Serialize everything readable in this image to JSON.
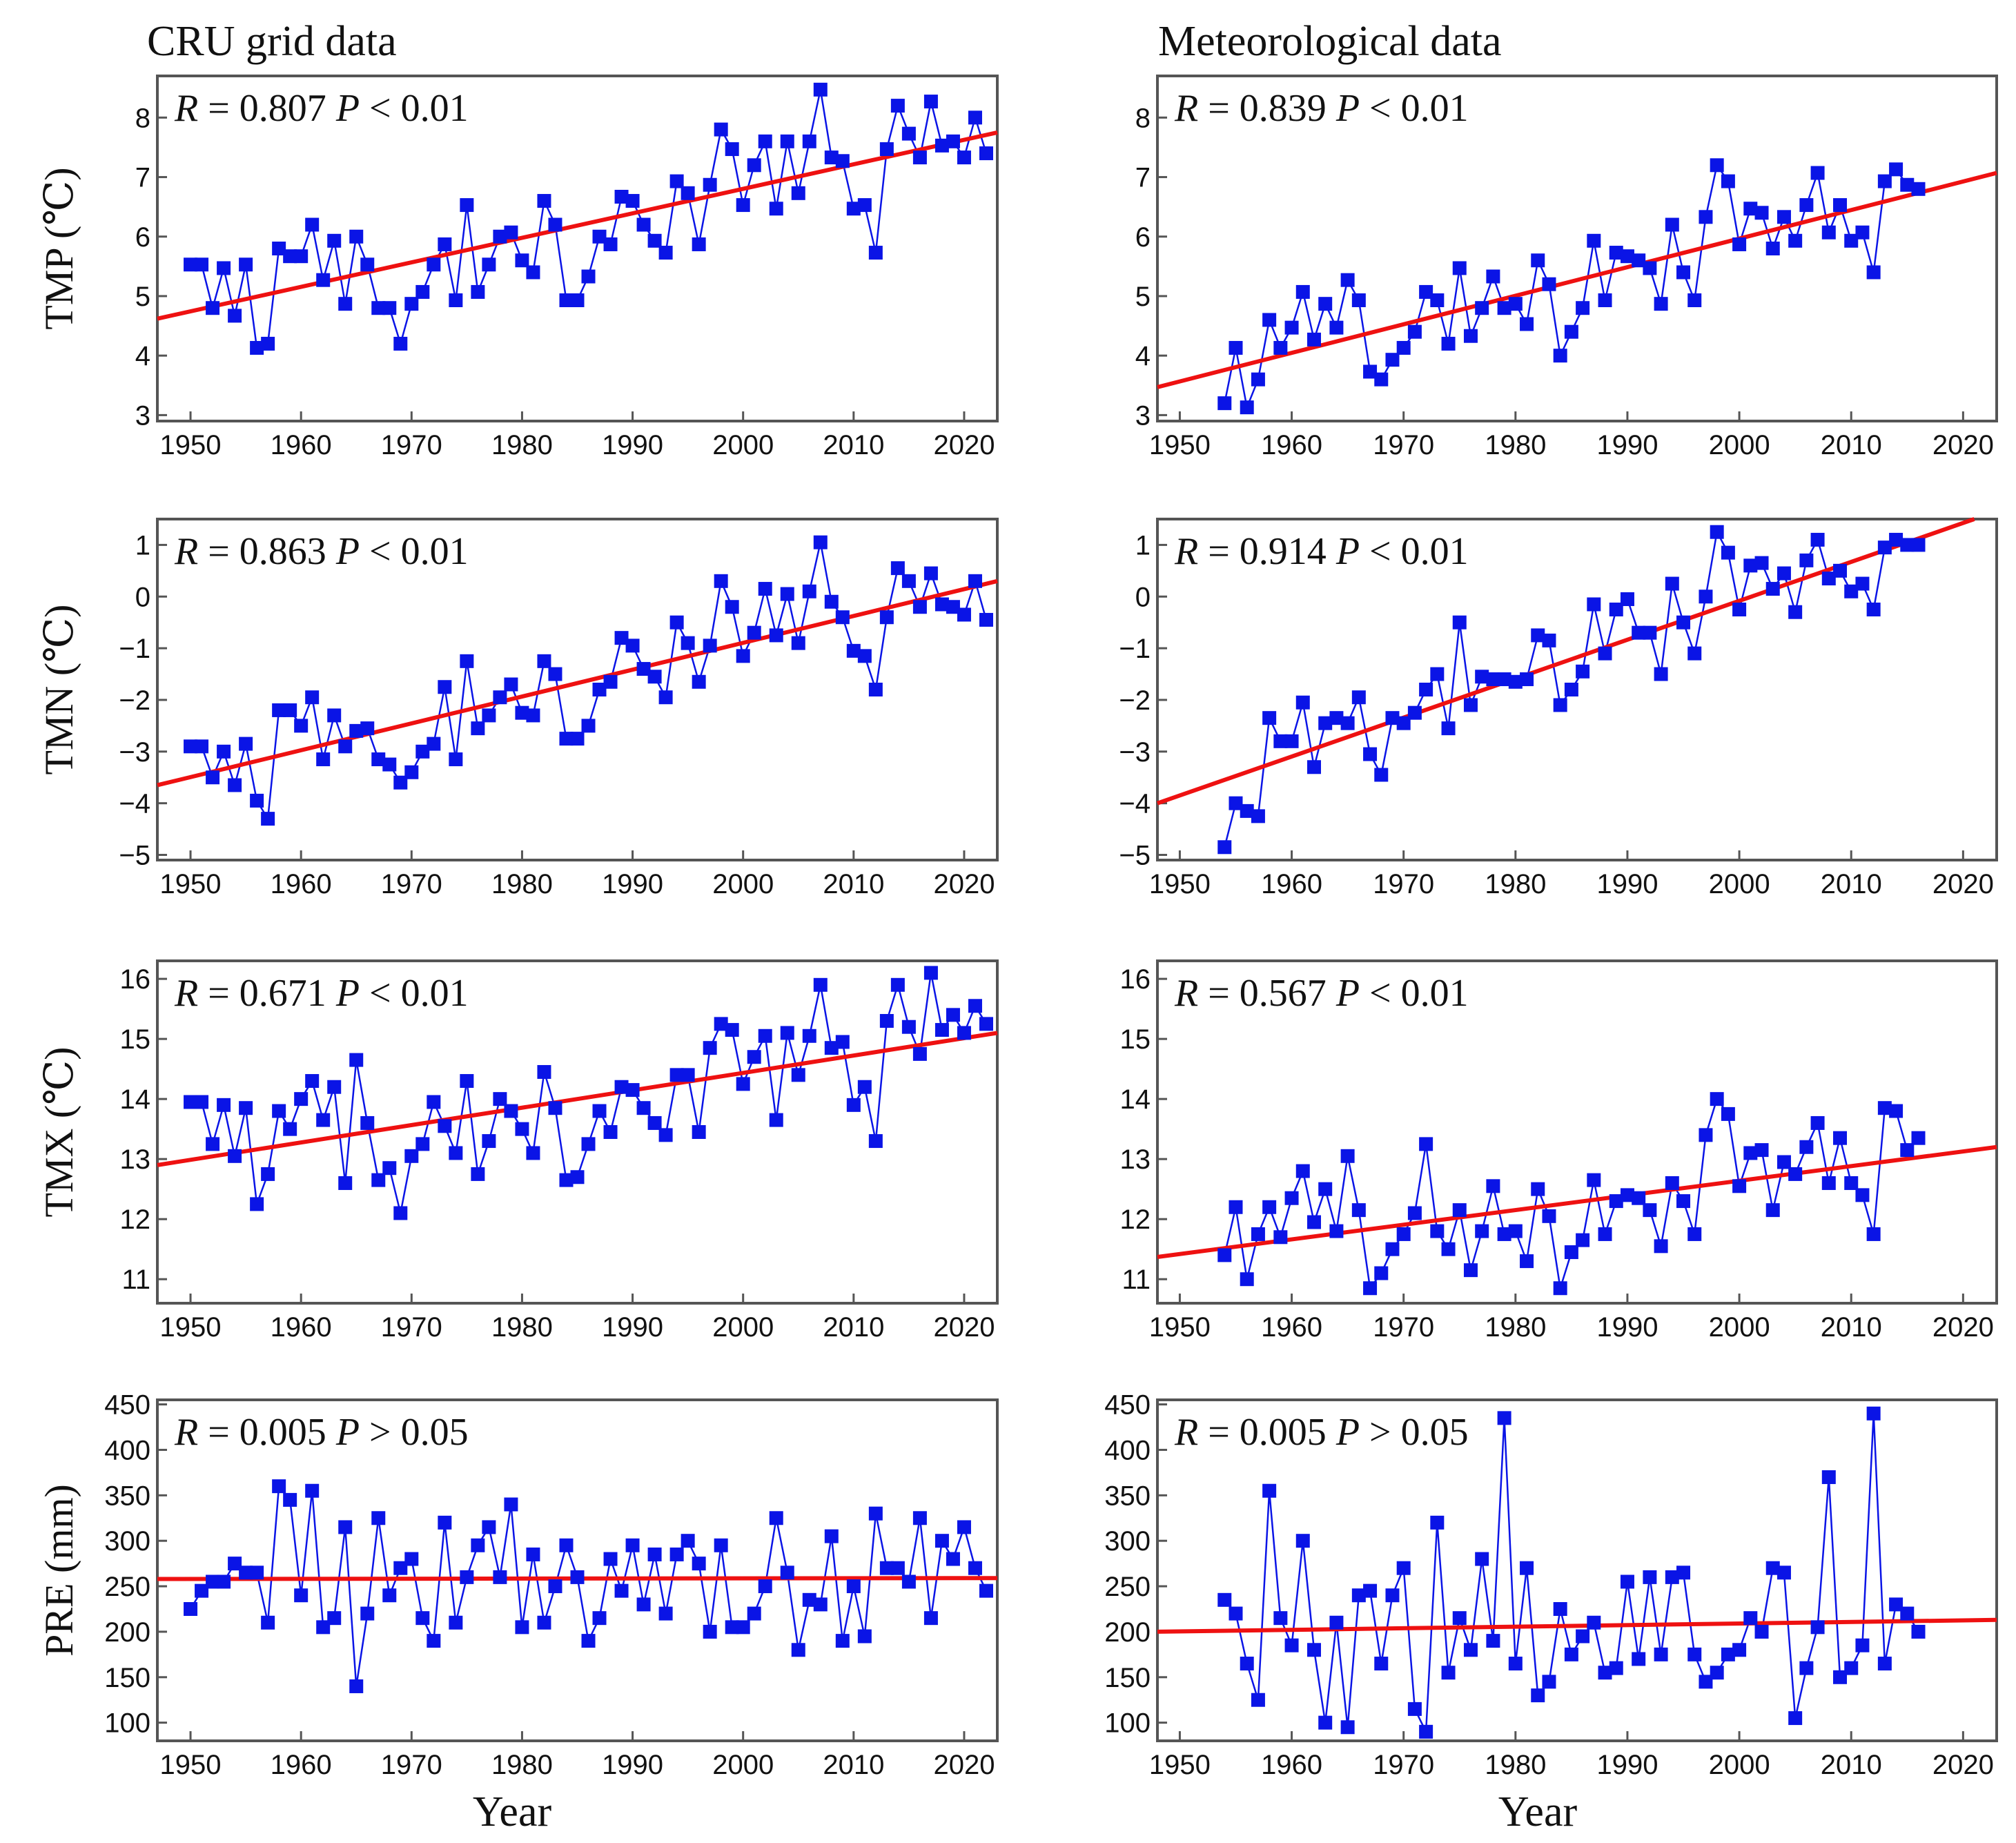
{
  "figure": {
    "col_titles": [
      "CRU grid data",
      "Meteorological data"
    ],
    "row_ylabels": [
      "TMP (℃)",
      "TMN (℃)",
      "TMX (℃)",
      "PRE (mm)"
    ],
    "xlabel": "Year",
    "colors": {
      "series": "#0a14e6",
      "fit": "#ee1111",
      "frame": "#555555",
      "text": "#111111"
    }
  },
  "chart_data": [
    {
      "id": "cru-tmp",
      "type": "line",
      "source": "CRU grid data",
      "variable": "TMP",
      "ylabel": "TMP (℃)",
      "stat": {
        "R": "0.807",
        "P": "< 0.01"
      },
      "xlim": [
        1947,
        2023
      ],
      "ylim": [
        2.9,
        8.7
      ],
      "xticks": [
        1950,
        1960,
        1970,
        1980,
        1990,
        2000,
        2010,
        2020
      ],
      "yticks": [
        3,
        4,
        5,
        6,
        7,
        8
      ],
      "x_start": 1950,
      "values": [
        5.53,
        5.53,
        4.8,
        5.47,
        4.67,
        5.53,
        4.13,
        4.2,
        5.8,
        5.67,
        5.67,
        6.2,
        5.27,
        5.93,
        4.87,
        6.0,
        5.53,
        4.8,
        4.8,
        4.2,
        4.87,
        5.07,
        5.53,
        5.87,
        4.93,
        6.53,
        5.07,
        5.53,
        6.0,
        6.07,
        5.6,
        5.4,
        6.6,
        6.2,
        4.93,
        4.93,
        5.33,
        6.0,
        5.87,
        6.67,
        6.6,
        6.2,
        5.93,
        5.73,
        6.93,
        6.73,
        5.87,
        6.87,
        7.8,
        7.47,
        6.53,
        7.2,
        7.6,
        6.47,
        7.6,
        6.73,
        7.6,
        8.47,
        7.33,
        7.27,
        6.47,
        6.53,
        5.73,
        7.47,
        8.2,
        7.73,
        7.33,
        8.27,
        7.53,
        7.6,
        7.33,
        8.0,
        7.4
      ],
      "fit": {
        "x": [
          1947,
          2023
        ],
        "y": [
          4.62,
          7.75
        ]
      }
    },
    {
      "id": "met-tmp",
      "type": "line",
      "source": "Meteorological data",
      "variable": "TMP",
      "ylabel": "TMP (℃)",
      "stat": {
        "R": "0.839",
        "P": "< 0.01"
      },
      "xlim": [
        1948,
        2023
      ],
      "ylim": [
        2.9,
        8.7
      ],
      "xticks": [
        1950,
        1960,
        1970,
        1980,
        1990,
        2000,
        2010,
        2020
      ],
      "yticks": [
        3,
        4,
        5,
        6,
        7,
        8
      ],
      "x_start": 1954,
      "values": [
        3.2,
        4.13,
        3.13,
        3.6,
        4.6,
        4.13,
        4.47,
        5.07,
        4.27,
        4.87,
        4.47,
        5.27,
        4.93,
        3.73,
        3.6,
        3.93,
        4.13,
        4.4,
        5.07,
        4.93,
        4.2,
        5.47,
        4.33,
        4.8,
        5.33,
        4.8,
        4.87,
        4.53,
        5.6,
        5.2,
        4.0,
        4.4,
        4.8,
        5.93,
        4.93,
        5.73,
        5.67,
        5.6,
        5.47,
        4.87,
        6.2,
        5.4,
        4.93,
        6.33,
        7.2,
        6.93,
        5.87,
        6.47,
        6.4,
        5.8,
        6.33,
        5.93,
        6.53,
        7.07,
        6.07,
        6.53,
        5.93,
        6.07,
        5.4,
        6.93,
        7.13,
        6.87,
        6.8
      ],
      "fit": {
        "x": [
          1948,
          2023
        ],
        "y": [
          3.47,
          7.07
        ]
      }
    },
    {
      "id": "cru-tmn",
      "type": "line",
      "source": "CRU grid data",
      "variable": "TMN",
      "ylabel": "TMN (℃)",
      "stat": {
        "R": "0.863",
        "P": "< 0.01"
      },
      "xlim": [
        1947,
        2023
      ],
      "ylim": [
        -5.1,
        1.5
      ],
      "xticks": [
        1950,
        1960,
        1970,
        1980,
        1990,
        2000,
        2010,
        2020
      ],
      "yticks": [
        -5,
        -4,
        -3,
        -2,
        -1,
        0,
        1
      ],
      "x_start": 1950,
      "values": [
        -2.9,
        -2.9,
        -3.5,
        -3.0,
        -3.65,
        -2.85,
        -3.95,
        -4.3,
        -2.2,
        -2.2,
        -2.5,
        -1.95,
        -3.15,
        -2.3,
        -2.9,
        -2.6,
        -2.55,
        -3.15,
        -3.25,
        -3.6,
        -3.4,
        -3.0,
        -2.85,
        -1.75,
        -3.15,
        -1.25,
        -2.55,
        -2.3,
        -1.95,
        -1.7,
        -2.25,
        -2.3,
        -1.25,
        -1.5,
        -2.75,
        -2.75,
        -2.5,
        -1.8,
        -1.65,
        -0.8,
        -0.95,
        -1.4,
        -1.55,
        -1.95,
        -0.5,
        -0.9,
        -1.65,
        -0.95,
        0.3,
        -0.2,
        -1.15,
        -0.7,
        0.15,
        -0.75,
        0.05,
        -0.9,
        0.1,
        1.05,
        -0.1,
        -0.4,
        -1.05,
        -1.15,
        -1.8,
        -0.4,
        0.55,
        0.3,
        -0.2,
        0.45,
        -0.15,
        -0.2,
        -0.35,
        0.3,
        -0.45
      ],
      "fit": {
        "x": [
          1947,
          2023
        ],
        "y": [
          -3.65,
          0.3
        ]
      }
    },
    {
      "id": "met-tmn",
      "type": "line",
      "source": "Meteorological data",
      "variable": "TMN",
      "ylabel": "TMN (℃)",
      "stat": {
        "R": "0.914",
        "P": "< 0.01"
      },
      "xlim": [
        1948,
        2023
      ],
      "ylim": [
        -5.1,
        1.5
      ],
      "xticks": [
        1950,
        1960,
        1970,
        1980,
        1990,
        2000,
        2010,
        2020
      ],
      "yticks": [
        -5,
        -4,
        -3,
        -2,
        -1,
        0,
        1
      ],
      "x_start": 1954,
      "values": [
        -4.85,
        -4.0,
        -4.15,
        -4.25,
        -2.35,
        -2.8,
        -2.8,
        -2.05,
        -3.3,
        -2.45,
        -2.35,
        -2.45,
        -1.95,
        -3.05,
        -3.45,
        -2.35,
        -2.45,
        -2.25,
        -1.8,
        -1.5,
        -2.55,
        -0.5,
        -2.1,
        -1.55,
        -1.6,
        -1.6,
        -1.65,
        -1.6,
        -0.75,
        -0.85,
        -2.1,
        -1.8,
        -1.45,
        -0.15,
        -1.1,
        -0.25,
        -0.05,
        -0.7,
        -0.7,
        -1.5,
        0.25,
        -0.5,
        -1.1,
        0.0,
        1.25,
        0.85,
        -0.25,
        0.6,
        0.65,
        0.15,
        0.45,
        -0.3,
        0.7,
        1.1,
        0.35,
        0.5,
        0.1,
        0.25,
        -0.25,
        0.95,
        1.1,
        1.0,
        1.0
      ],
      "fit": {
        "x": [
          1948,
          2021
        ],
        "y": [
          -4.0,
          1.5
        ]
      }
    },
    {
      "id": "cru-tmx",
      "type": "line",
      "source": "CRU grid data",
      "variable": "TMX",
      "ylabel": "TMX (℃)",
      "stat": {
        "R": "0.671",
        "P": "< 0.01"
      },
      "xlim": [
        1947,
        2023
      ],
      "ylim": [
        10.6,
        16.3
      ],
      "xticks": [
        1950,
        1960,
        1970,
        1980,
        1990,
        2000,
        2010,
        2020
      ],
      "yticks": [
        11,
        12,
        13,
        14,
        15,
        16
      ],
      "x_start": 1950,
      "values": [
        13.95,
        13.95,
        13.25,
        13.9,
        13.05,
        13.85,
        12.25,
        12.75,
        13.8,
        13.5,
        14.0,
        14.3,
        13.65,
        14.2,
        12.6,
        14.65,
        13.6,
        12.65,
        12.85,
        12.1,
        13.05,
        13.25,
        13.95,
        13.55,
        13.1,
        14.3,
        12.75,
        13.3,
        14.0,
        13.8,
        13.5,
        13.1,
        14.45,
        13.85,
        12.65,
        12.7,
        13.25,
        13.8,
        13.45,
        14.2,
        14.15,
        13.85,
        13.6,
        13.4,
        14.4,
        14.4,
        13.45,
        14.85,
        15.25,
        15.15,
        14.25,
        14.7,
        15.05,
        13.65,
        15.1,
        14.4,
        15.05,
        15.9,
        14.85,
        14.95,
        13.9,
        14.2,
        13.3,
        15.3,
        15.9,
        15.2,
        14.75,
        16.1,
        15.15,
        15.4,
        15.1,
        15.55,
        15.25
      ],
      "fit": {
        "x": [
          1947,
          2023
        ],
        "y": [
          12.9,
          15.1
        ]
      }
    },
    {
      "id": "met-tmx",
      "type": "line",
      "source": "Meteorological data",
      "variable": "TMX",
      "ylabel": "TMX (℃)",
      "stat": {
        "R": "0.567",
        "P": "< 0.01"
      },
      "xlim": [
        1948,
        2023
      ],
      "ylim": [
        10.6,
        16.3
      ],
      "xticks": [
        1950,
        1960,
        1970,
        1980,
        1990,
        2000,
        2010,
        2020
      ],
      "yticks": [
        11,
        12,
        13,
        14,
        15,
        16
      ],
      "x_start": 1954,
      "values": [
        11.4,
        12.2,
        11.0,
        11.75,
        12.2,
        11.7,
        12.35,
        12.8,
        11.95,
        12.5,
        11.8,
        13.05,
        12.15,
        10.85,
        11.1,
        11.5,
        11.75,
        12.1,
        13.25,
        11.8,
        11.5,
        12.15,
        11.15,
        11.8,
        12.55,
        11.75,
        11.8,
        11.3,
        12.5,
        12.05,
        10.85,
        11.45,
        11.65,
        12.65,
        11.75,
        12.3,
        12.4,
        12.35,
        12.15,
        11.55,
        12.6,
        12.3,
        11.75,
        13.4,
        14.0,
        13.75,
        12.55,
        13.1,
        13.15,
        12.15,
        12.95,
        12.75,
        13.2,
        13.6,
        12.6,
        13.35,
        12.6,
        12.4,
        11.75,
        13.85,
        13.8,
        13.15,
        13.35
      ],
      "fit": {
        "x": [
          1948,
          2023
        ],
        "y": [
          11.37,
          13.2
        ]
      }
    },
    {
      "id": "cru-pre",
      "type": "line",
      "source": "CRU grid data",
      "variable": "PRE",
      "ylabel": "PRE (mm)",
      "stat": {
        "R": "0.005",
        "P": "> 0.05"
      },
      "xlim": [
        1947,
        2023
      ],
      "ylim": [
        80,
        455
      ],
      "xticks": [
        1950,
        1960,
        1970,
        1980,
        1990,
        2000,
        2010,
        2020
      ],
      "yticks": [
        100,
        150,
        200,
        250,
        300,
        350,
        400,
        450
      ],
      "x_start": 1950,
      "values": [
        225,
        245,
        255,
        255,
        275,
        265,
        265,
        210,
        360,
        345,
        240,
        355,
        205,
        215,
        315,
        140,
        220,
        325,
        240,
        270,
        280,
        215,
        190,
        320,
        210,
        260,
        295,
        315,
        260,
        340,
        205,
        285,
        210,
        250,
        295,
        260,
        190,
        215,
        280,
        245,
        295,
        230,
        285,
        220,
        285,
        300,
        275,
        200,
        295,
        205,
        205,
        220,
        250,
        325,
        265,
        180,
        235,
        230,
        305,
        190,
        250,
        195,
        330,
        270,
        270,
        255,
        325,
        215,
        300,
        280,
        315,
        270,
        245
      ],
      "fit": {
        "x": [
          1947,
          2023
        ],
        "y": [
          258,
          259
        ]
      }
    },
    {
      "id": "met-pre",
      "type": "line",
      "source": "Meteorological data",
      "variable": "PRE",
      "ylabel": "PRE (mm)",
      "stat": {
        "R": "0.005",
        "P": "> 0.05"
      },
      "xlim": [
        1948,
        2023
      ],
      "ylim": [
        80,
        455
      ],
      "xticks": [
        1950,
        1960,
        1970,
        1980,
        1990,
        2000,
        2010,
        2020
      ],
      "yticks": [
        100,
        150,
        200,
        250,
        300,
        350,
        400,
        450
      ],
      "x_start": 1954,
      "values": [
        235,
        220,
        165,
        125,
        355,
        215,
        185,
        300,
        180,
        100,
        210,
        95,
        240,
        245,
        165,
        240,
        270,
        115,
        90,
        320,
        155,
        215,
        180,
        280,
        190,
        435,
        165,
        270,
        130,
        145,
        225,
        175,
        195,
        210,
        155,
        160,
        255,
        170,
        260,
        175,
        260,
        265,
        175,
        145,
        155,
        175,
        180,
        215,
        200,
        270,
        265,
        105,
        160,
        205,
        370,
        150,
        160,
        185,
        440,
        165,
        230,
        220,
        200
      ],
      "fit": {
        "x": [
          1948,
          2023
        ],
        "y": [
          200,
          213
        ]
      }
    }
  ]
}
